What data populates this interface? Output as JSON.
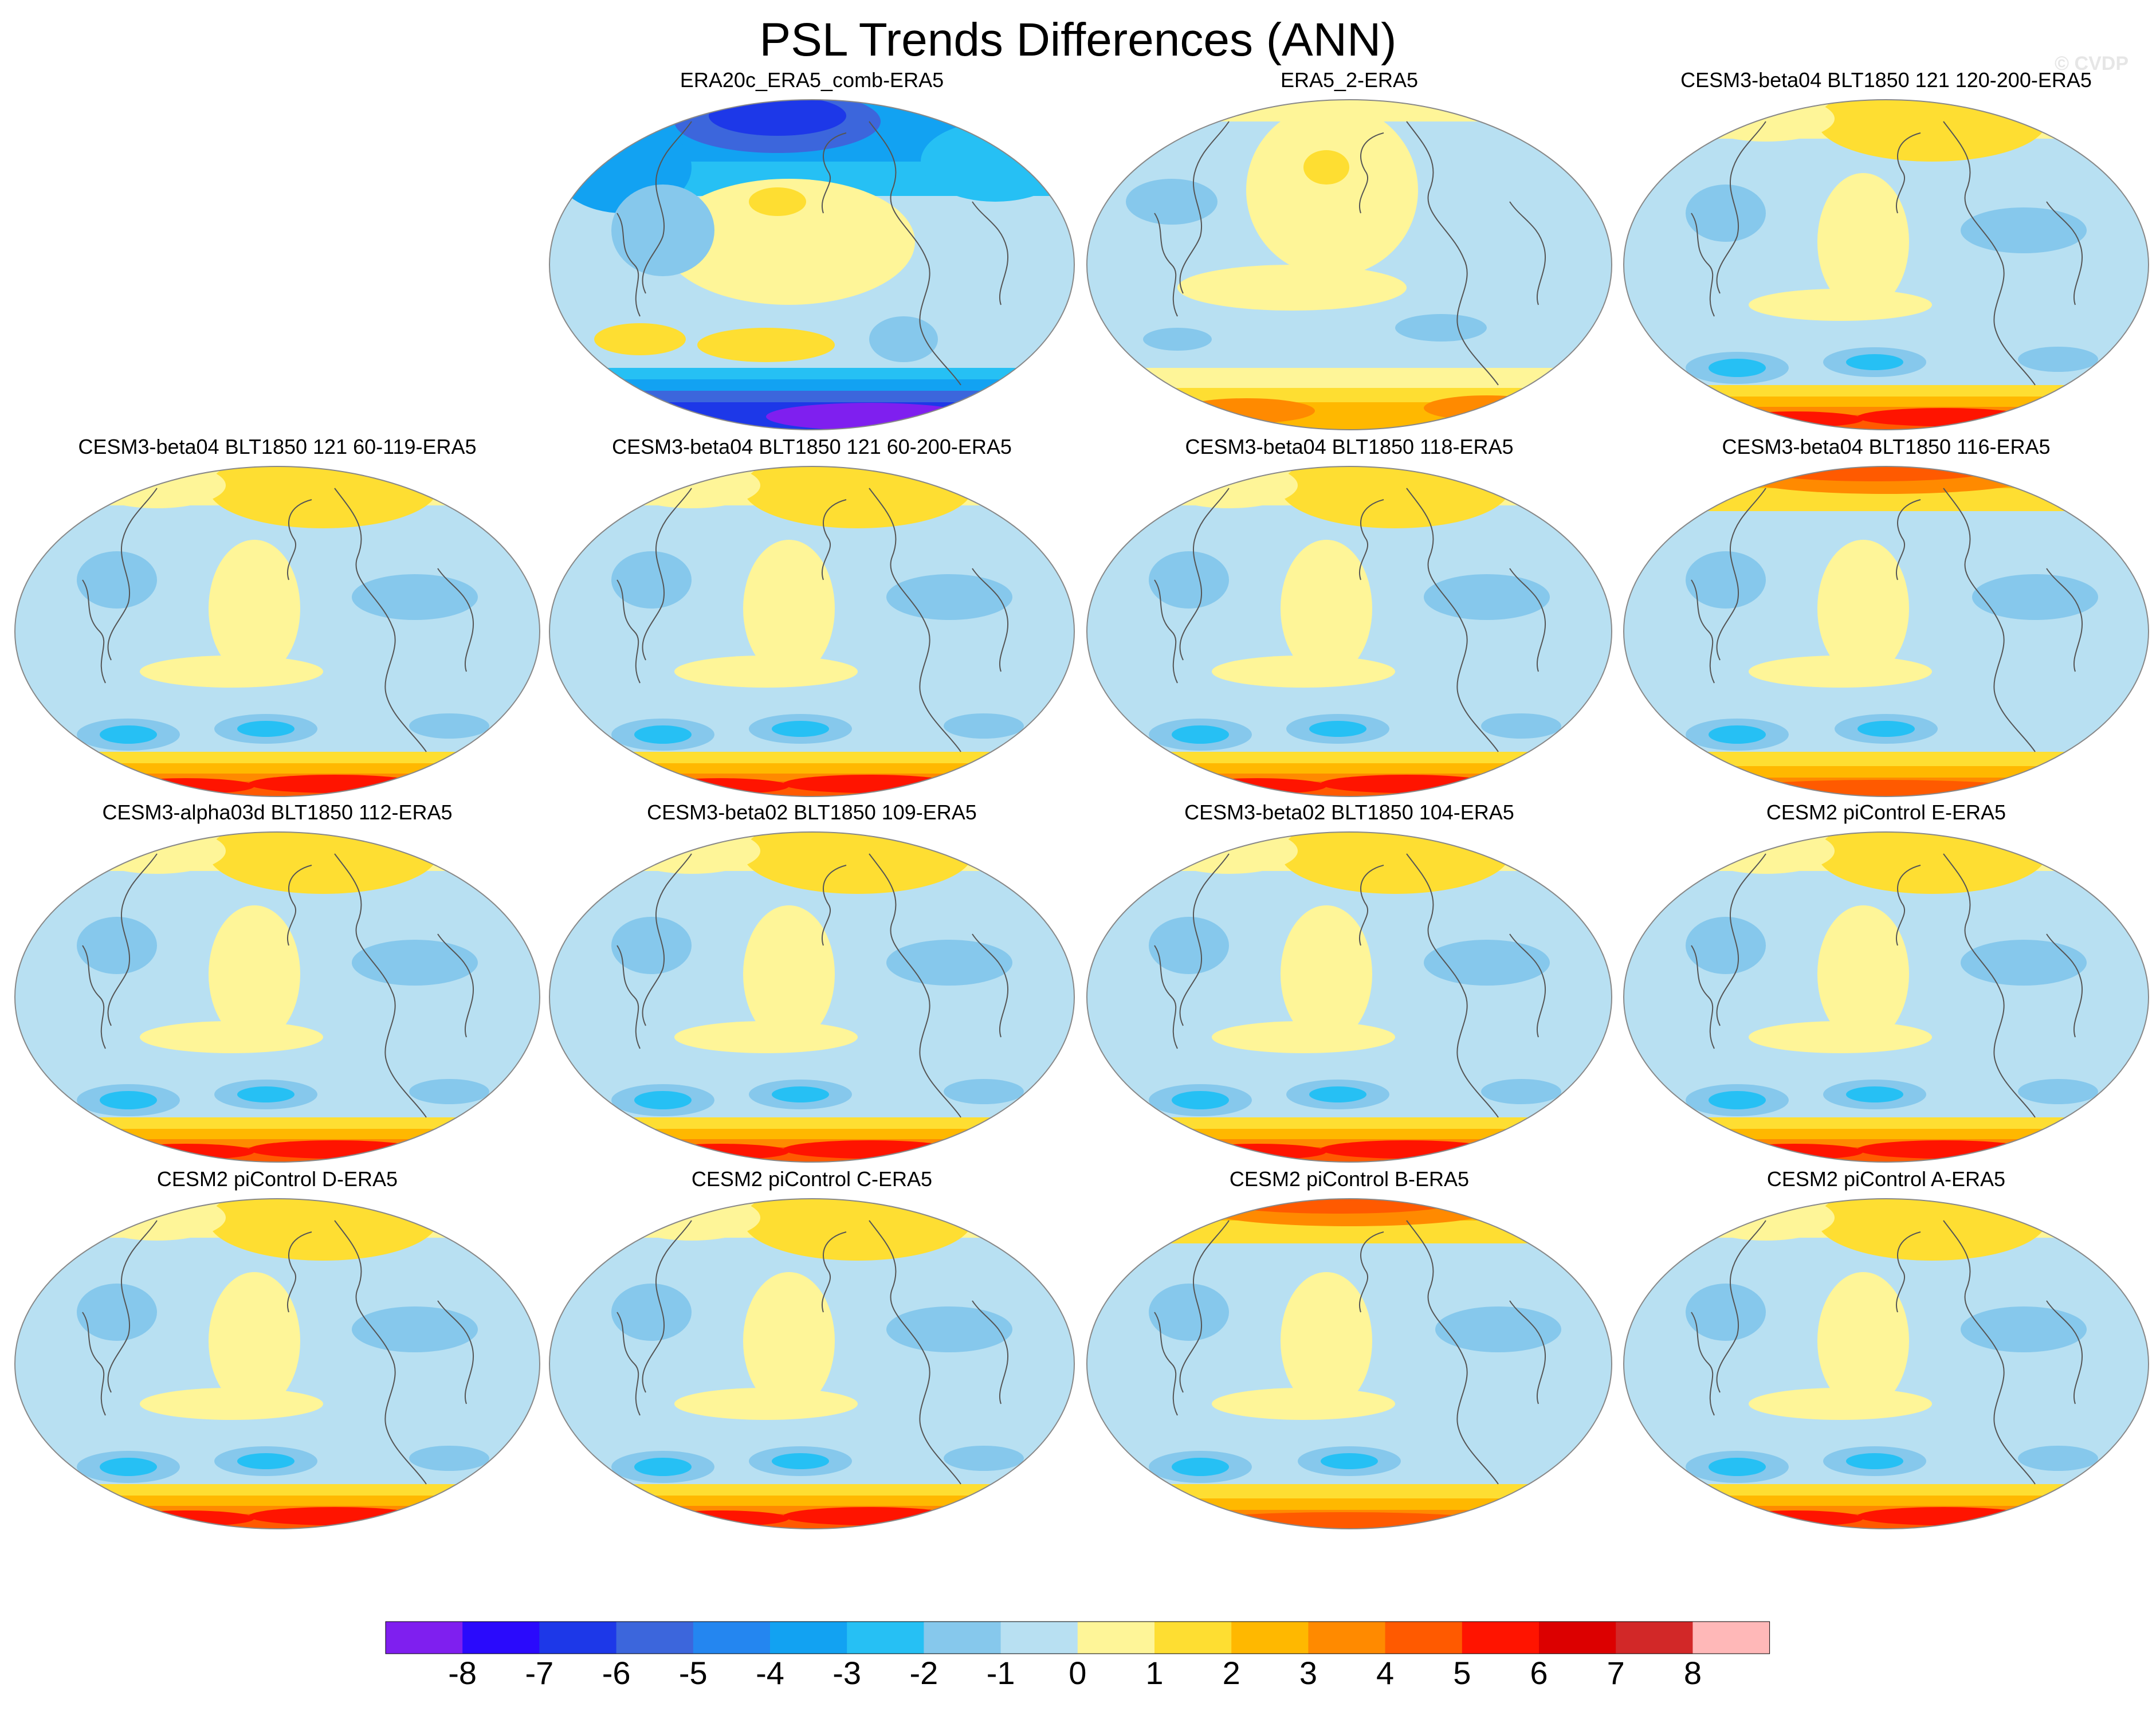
{
  "title": "PSL Trends Differences (ANN)",
  "watermark": "© CVDP",
  "panels": [
    {
      "title": "ERA20c_ERA5_comb-ERA5",
      "pattern": "era20c"
    },
    {
      "title": "ERA5_2-ERA5",
      "pattern": "era5"
    },
    {
      "title": "CESM3-beta04 BLT1850 121 120-200-ERA5",
      "pattern": "typical"
    },
    {
      "title": "CESM3-beta04 BLT1850 121 60-119-ERA5",
      "pattern": "typical"
    },
    {
      "title": "CESM3-beta04 BLT1850 121 60-200-ERA5",
      "pattern": "typical"
    },
    {
      "title": "CESM3-beta04 BLT1850 118-ERA5",
      "pattern": "typical"
    },
    {
      "title": "CESM3-beta04 BLT1850 116-ERA5",
      "pattern": "warmnorth"
    },
    {
      "title": "CESM3-alpha03d BLT1850 112-ERA5",
      "pattern": "typical"
    },
    {
      "title": "CESM3-beta02 BLT1850 109-ERA5",
      "pattern": "typical"
    },
    {
      "title": "CESM3-beta02 BLT1850 104-ERA5",
      "pattern": "typical"
    },
    {
      "title": "CESM2 piControl E-ERA5",
      "pattern": "typical"
    },
    {
      "title": "CESM2 piControl D-ERA5",
      "pattern": "typical"
    },
    {
      "title": "CESM2 piControl C-ERA5",
      "pattern": "typical"
    },
    {
      "title": "CESM2 piControl B-ERA5",
      "pattern": "warmnorth"
    },
    {
      "title": "CESM2 piControl A-ERA5",
      "pattern": "typical"
    }
  ],
  "colorbar": {
    "colors": [
      "#7f1fef",
      "#2a0afc",
      "#1d38e8",
      "#3c66dc",
      "#2486f0",
      "#12a2f2",
      "#26c0f4",
      "#86c8ec",
      "#b8e0f2",
      "#fef598",
      "#fede32",
      "#ffb800",
      "#ff8a00",
      "#ff5a00",
      "#ff1400",
      "#dc0000",
      "#d22828",
      "#ffb8b8"
    ],
    "labels": [
      "-8",
      "-7",
      "-6",
      "-5",
      "-4",
      "-3",
      "-2",
      "-1",
      "0",
      "1",
      "2",
      "3",
      "4",
      "5",
      "6",
      "7",
      "8"
    ]
  },
  "colors": {
    "coastline": "#555555",
    "outline": "#888888"
  }
}
